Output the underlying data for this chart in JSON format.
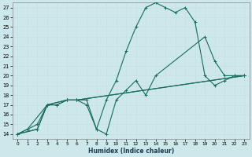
{
  "xlabel": "Humidex (Indice chaleur)",
  "bg_color": "#cce8ea",
  "grid_color": "#b8d8da",
  "line_color": "#1a6b5a",
  "xlim": [
    -0.5,
    23.5
  ],
  "ylim": [
    13.5,
    27.5
  ],
  "yticks": [
    14,
    15,
    16,
    17,
    18,
    19,
    20,
    21,
    22,
    23,
    24,
    25,
    26,
    27
  ],
  "xticks": [
    0,
    1,
    2,
    3,
    4,
    5,
    6,
    7,
    8,
    9,
    10,
    11,
    12,
    13,
    14,
    15,
    16,
    17,
    18,
    19,
    20,
    21,
    22,
    23
  ],
  "line1": {
    "x": [
      0,
      1,
      2,
      3,
      4,
      5,
      6,
      23
    ],
    "y": [
      14,
      14.5,
      15,
      17,
      17,
      17.5,
      17.5,
      20
    ]
  },
  "line2": {
    "x": [
      0,
      2,
      3,
      5,
      6,
      23
    ],
    "y": [
      14,
      14.5,
      17,
      17.5,
      17.5,
      20
    ]
  },
  "line3": {
    "x": [
      0,
      1,
      3,
      4,
      5,
      6,
      7,
      8,
      9,
      10,
      11,
      12,
      13,
      14,
      19,
      20,
      21,
      22,
      23
    ],
    "y": [
      14,
      14.5,
      17,
      17,
      17.5,
      17.5,
      17,
      14.5,
      14,
      17.5,
      18.5,
      19.5,
      18,
      20,
      24,
      21.5,
      20,
      20,
      20
    ]
  },
  "line4": {
    "x": [
      0,
      2,
      3,
      5,
      6,
      7,
      8,
      9,
      10,
      11,
      12,
      13,
      14,
      15,
      16,
      17,
      18,
      19,
      20,
      21,
      22,
      23
    ],
    "y": [
      14,
      14.5,
      17,
      17.5,
      17.5,
      17.5,
      14.5,
      17.5,
      19.5,
      22.5,
      25,
      27,
      27.5,
      27,
      26.5,
      27,
      25.5,
      20,
      19,
      19.5,
      20,
      20
    ]
  }
}
